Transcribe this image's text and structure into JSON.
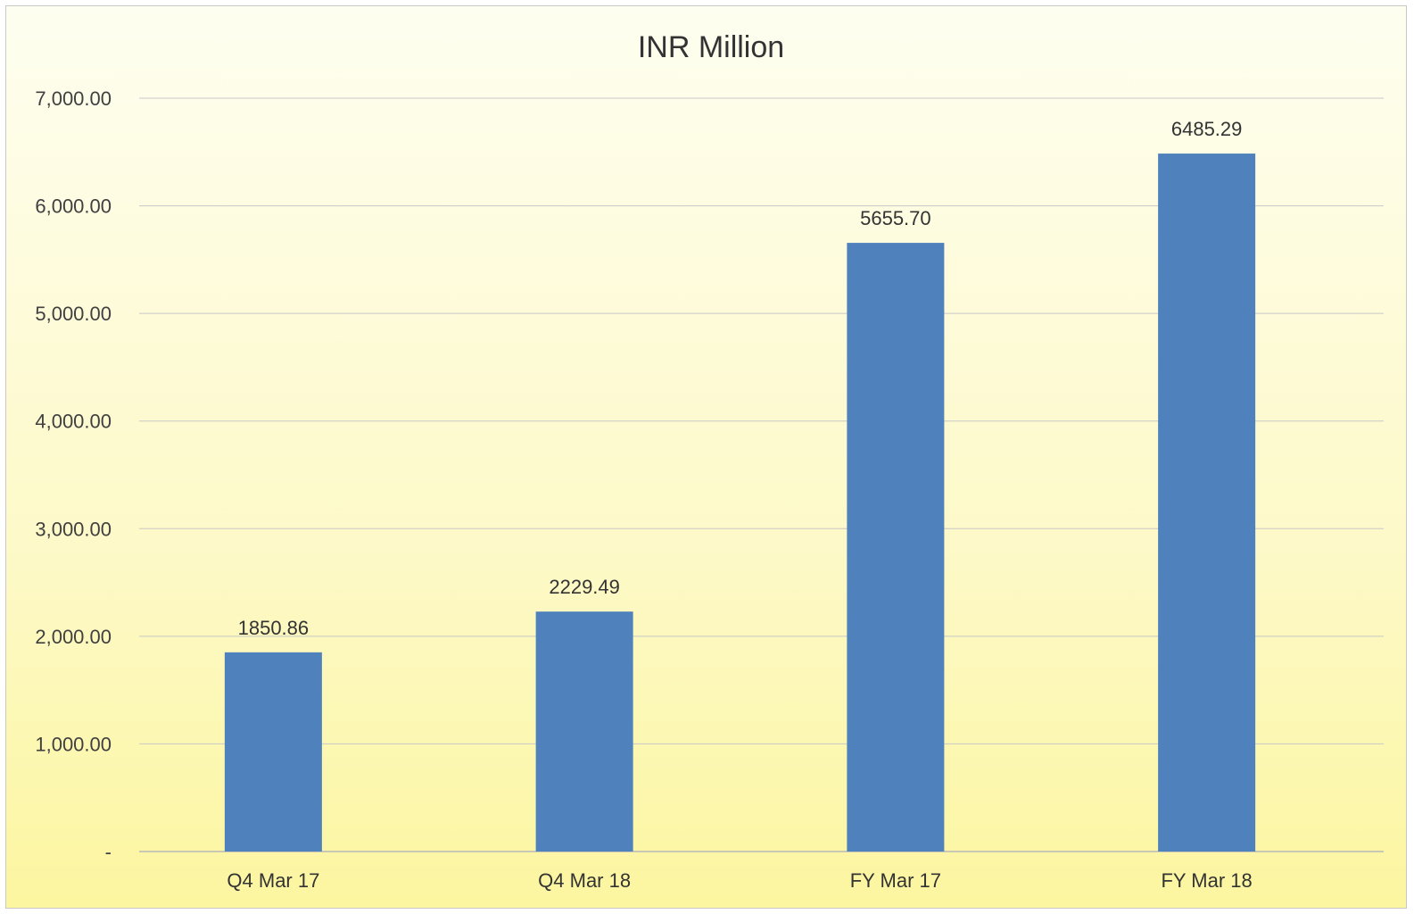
{
  "chart_data": {
    "type": "bar",
    "title": "INR Million",
    "categories": [
      "Q4 Mar 17",
      "Q4 Mar 18",
      "FY Mar 17",
      "FY Mar 18"
    ],
    "values": [
      1850.86,
      2229.49,
      5655.7,
      6485.29
    ],
    "data_labels": [
      "1850.86",
      "2229.49",
      "5655.70",
      "6485.29"
    ],
    "y_tick_labels": [
      "-",
      "1,000.00",
      "2,000.00",
      "3,000.00",
      "4,000.00",
      "5,000.00",
      "6,000.00",
      "7,000.00"
    ],
    "ylim": [
      0,
      7000
    ],
    "grid": true,
    "legend": "none",
    "bar_color": "#4f81bd"
  }
}
